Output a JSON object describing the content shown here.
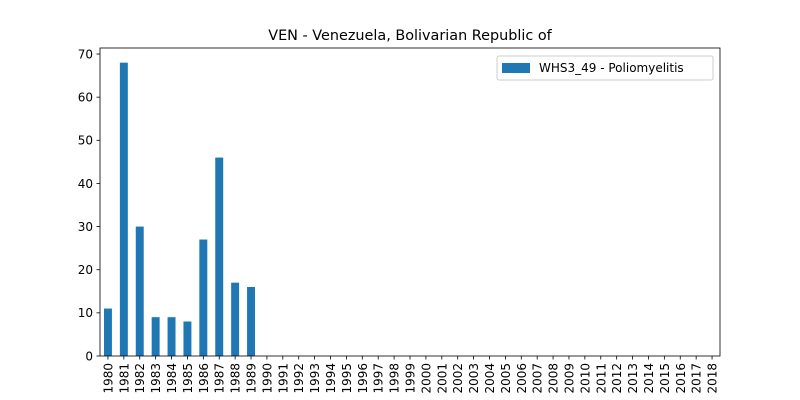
{
  "chart_data": {
    "type": "bar",
    "title": "VEN - Venezuela, Bolivarian Republic of",
    "xlabel": "",
    "ylabel": "",
    "categories": [
      "1980",
      "1981",
      "1982",
      "1983",
      "1984",
      "1985",
      "1986",
      "1987",
      "1988",
      "1989",
      "1990",
      "1991",
      "1992",
      "1993",
      "1994",
      "1995",
      "1996",
      "1997",
      "1998",
      "1999",
      "2000",
      "2001",
      "2002",
      "2003",
      "2004",
      "2005",
      "2006",
      "2007",
      "2008",
      "2009",
      "2010",
      "2011",
      "2012",
      "2013",
      "2014",
      "2015",
      "2016",
      "2017",
      "2018"
    ],
    "series": [
      {
        "name": "WHS3_49 - Poliomyelitis",
        "values": [
          11,
          68,
          30,
          9,
          9,
          8,
          27,
          46,
          17,
          16,
          0,
          0,
          0,
          0,
          0,
          0,
          0,
          0,
          0,
          0,
          0,
          0,
          0,
          0,
          0,
          0,
          0,
          0,
          0,
          0,
          0,
          0,
          0,
          0,
          0,
          0,
          0,
          0,
          0
        ]
      }
    ],
    "ylim": [
      0,
      71.4
    ],
    "yticks": [
      0,
      10,
      20,
      30,
      40,
      50,
      60,
      70
    ],
    "grid": false,
    "legend_position": "top-right",
    "colors": {
      "bar": "#1f77b4"
    }
  }
}
